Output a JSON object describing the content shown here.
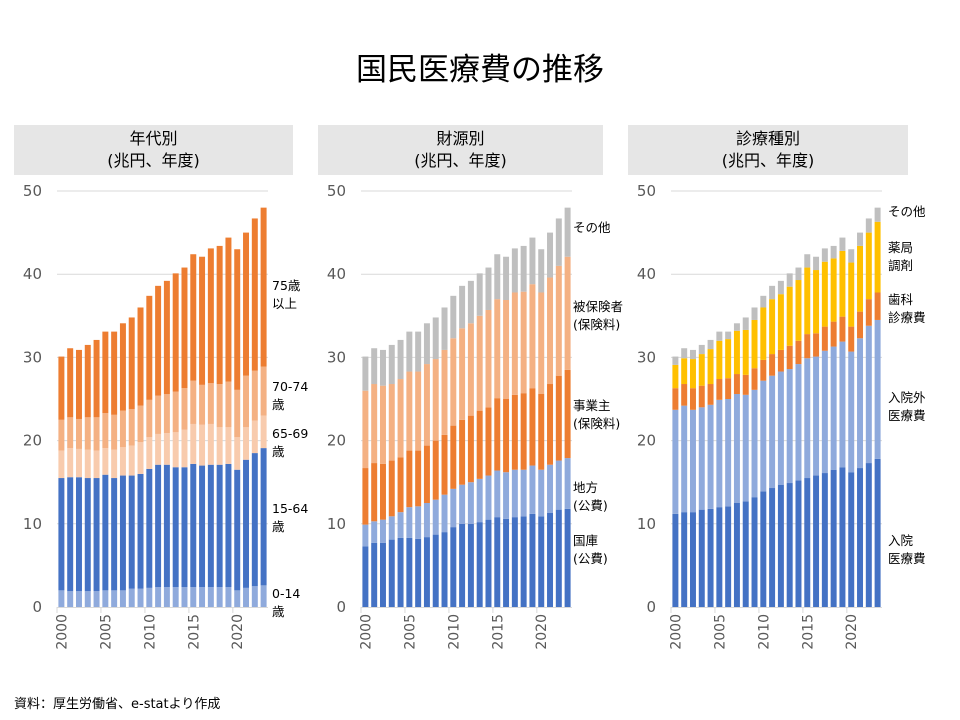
{
  "title": "国民医療費の推移",
  "footer": "資料：厚生労働省、e-statより作成",
  "colors": {
    "dark_blue": "#4472C4",
    "light_blue": "#8FAADC",
    "orange": "#ED7D31",
    "light_orange": "#F4B183",
    "pale_orange": "#F8CBAD",
    "gray": "#BFBFBF",
    "yellow": "#FFC000"
  },
  "chart_data": [
    {
      "type": "bar",
      "stacked": true,
      "title": "年代別\n(兆円、年度)",
      "x": [
        2000,
        2001,
        2002,
        2003,
        2004,
        2005,
        2006,
        2007,
        2008,
        2009,
        2010,
        2011,
        2012,
        2013,
        2014,
        2015,
        2016,
        2017,
        2018,
        2019,
        2020,
        2021,
        2022,
        2023
      ],
      "x_tick_labels": [
        "2000",
        "2005",
        "2010",
        "2015",
        "2020"
      ],
      "y_tick_labels": [
        "0",
        "10",
        "20",
        "30",
        "40",
        "50"
      ],
      "ylim": [
        0,
        50
      ],
      "grid": true,
      "series": [
        {
          "name": "0-14\n歳",
          "color": "#8FAADC",
          "values": [
            2.0,
            1.9,
            1.9,
            1.9,
            1.9,
            2.0,
            2.0,
            2.0,
            2.2,
            2.2,
            2.3,
            2.4,
            2.4,
            2.4,
            2.4,
            2.4,
            2.4,
            2.4,
            2.4,
            2.4,
            2.0,
            2.3,
            2.5,
            2.6
          ]
        },
        {
          "name": "15-64\n歳",
          "color": "#4472C4",
          "values": [
            13.5,
            13.7,
            13.7,
            13.6,
            13.6,
            13.9,
            13.5,
            13.8,
            13.6,
            13.8,
            14.3,
            14.7,
            14.7,
            14.4,
            14.4,
            14.8,
            14.6,
            14.7,
            14.7,
            14.8,
            14.5,
            15.4,
            16.0,
            16.5
          ]
        },
        {
          "name": "65-69\n歳",
          "color": "#F8CBAD",
          "values": [
            3.3,
            3.5,
            3.4,
            3.4,
            3.3,
            3.2,
            3.4,
            3.4,
            3.6,
            3.8,
            3.8,
            3.7,
            3.8,
            4.2,
            4.5,
            4.8,
            4.9,
            4.9,
            4.5,
            4.4,
            3.9,
            3.9,
            3.9,
            3.9
          ]
        },
        {
          "name": "70-74\n歳",
          "color": "#F4B183",
          "values": [
            3.7,
            3.7,
            3.6,
            3.9,
            4.0,
            4.2,
            4.2,
            4.4,
            4.4,
            4.4,
            4.5,
            4.6,
            4.7,
            4.9,
            5.0,
            5.2,
            4.8,
            4.9,
            5.2,
            5.5,
            5.7,
            6.2,
            6.0,
            5.9
          ]
        },
        {
          "name": "75歳\n以上",
          "color": "#ED7D31",
          "values": [
            7.6,
            8.3,
            8.3,
            8.7,
            9.3,
            9.8,
            10.0,
            10.5,
            11.0,
            11.8,
            12.5,
            13.2,
            13.6,
            14.2,
            14.5,
            15.2,
            15.4,
            16.2,
            16.6,
            17.3,
            16.9,
            17.2,
            18.3,
            19.1
          ]
        }
      ]
    },
    {
      "type": "bar",
      "stacked": true,
      "title": "財源別\n(兆円、年度)",
      "x": [
        2000,
        2001,
        2002,
        2003,
        2004,
        2005,
        2006,
        2007,
        2008,
        2009,
        2010,
        2011,
        2012,
        2013,
        2014,
        2015,
        2016,
        2017,
        2018,
        2019,
        2020,
        2021,
        2022,
        2023
      ],
      "x_tick_labels": [
        "2000",
        "2005",
        "2010",
        "2015",
        "2020"
      ],
      "y_tick_labels": [
        "0",
        "10",
        "20",
        "30",
        "40",
        "50"
      ],
      "ylim": [
        0,
        50
      ],
      "grid": true,
      "series": [
        {
          "name": "国庫\n(公費)",
          "color": "#4472C4",
          "values": [
            7.3,
            7.7,
            7.7,
            8.1,
            8.3,
            8.3,
            8.2,
            8.4,
            8.7,
            9.0,
            9.6,
            10.0,
            10.0,
            10.2,
            10.5,
            10.8,
            10.6,
            10.8,
            10.9,
            11.2,
            10.9,
            11.3,
            11.7,
            11.8
          ]
        },
        {
          "name": "地方\n(公費)",
          "color": "#8FAADC",
          "values": [
            2.6,
            2.6,
            2.8,
            2.8,
            3.1,
            3.7,
            3.9,
            4.1,
            4.2,
            4.5,
            4.6,
            4.7,
            5.0,
            5.2,
            5.3,
            5.6,
            5.6,
            5.7,
            5.6,
            5.8,
            5.6,
            5.8,
            5.9,
            6.1
          ]
        },
        {
          "name": "事業主\n(保険料)",
          "color": "#ED7D31",
          "values": [
            6.8,
            7.0,
            6.7,
            6.7,
            6.6,
            6.8,
            6.7,
            6.9,
            7.1,
            7.2,
            7.6,
            7.8,
            8.0,
            8.2,
            8.2,
            8.7,
            8.8,
            9.0,
            9.2,
            9.3,
            9.1,
            9.7,
            10.2,
            10.6
          ]
        },
        {
          "name": "被保険者\n(保険料)",
          "color": "#F4B183",
          "values": [
            9.3,
            9.5,
            9.4,
            9.2,
            9.4,
            9.5,
            9.5,
            9.8,
            9.8,
            10.2,
            10.5,
            11.0,
            11.1,
            11.4,
            11.7,
            11.9,
            11.9,
            12.3,
            12.2,
            12.5,
            12.2,
            12.8,
            13.2,
            13.6
          ]
        },
        {
          "name": "その他",
          "color": "#BFBFBF",
          "values": [
            4.1,
            4.3,
            4.3,
            4.7,
            4.7,
            4.8,
            4.8,
            4.9,
            5.0,
            5.1,
            5.1,
            5.1,
            5.1,
            5.1,
            5.1,
            5.4,
            5.2,
            5.3,
            5.5,
            5.6,
            5.2,
            5.4,
            5.7,
            5.9
          ]
        }
      ]
    },
    {
      "type": "bar",
      "stacked": true,
      "title": "診療種別\n(兆円、年度)",
      "x": [
        2000,
        2001,
        2002,
        2003,
        2004,
        2005,
        2006,
        2007,
        2008,
        2009,
        2010,
        2011,
        2012,
        2013,
        2014,
        2015,
        2016,
        2017,
        2018,
        2019,
        2020,
        2021,
        2022,
        2023
      ],
      "x_tick_labels": [
        "2000",
        "2005",
        "2010",
        "2015",
        "2020"
      ],
      "y_tick_labels": [
        "0",
        "10",
        "20",
        "30",
        "40",
        "50"
      ],
      "ylim": [
        0,
        50
      ],
      "grid": true,
      "series": [
        {
          "name": "入院\n医療費",
          "color": "#4472C4",
          "values": [
            11.2,
            11.4,
            11.4,
            11.7,
            11.8,
            12.0,
            12.1,
            12.5,
            12.7,
            13.2,
            13.9,
            14.3,
            14.7,
            14.9,
            15.2,
            15.5,
            15.8,
            16.1,
            16.5,
            16.8,
            16.2,
            16.7,
            17.3,
            17.8
          ]
        },
        {
          "name": "入院外\n医療費",
          "color": "#8FAADC",
          "values": [
            12.5,
            12.8,
            12.3,
            12.3,
            12.5,
            12.9,
            12.9,
            13.1,
            12.8,
            12.9,
            13.3,
            13.5,
            13.6,
            13.7,
            14.0,
            14.4,
            14.3,
            14.7,
            14.8,
            15.1,
            14.5,
            15.6,
            16.5,
            16.7
          ]
        },
        {
          "name": "歯科\n診療費",
          "color": "#ED7D31",
          "values": [
            2.6,
            2.6,
            2.6,
            2.6,
            2.5,
            2.5,
            2.5,
            2.4,
            2.4,
            2.6,
            2.5,
            2.6,
            2.6,
            2.8,
            2.8,
            2.9,
            2.8,
            2.9,
            3.0,
            3.0,
            3.0,
            3.2,
            3.2,
            3.3
          ]
        },
        {
          "name": "薬局\n調剤",
          "color": "#FFC000",
          "values": [
            2.8,
            3.1,
            3.5,
            3.8,
            4.2,
            4.6,
            4.7,
            5.2,
            5.4,
            5.8,
            6.3,
            6.6,
            6.7,
            7.1,
            7.3,
            8.0,
            7.6,
            7.8,
            7.6,
            7.9,
            7.7,
            7.9,
            8.0,
            8.5
          ]
        },
        {
          "name": "その他",
          "color": "#BFBFBF",
          "values": [
            1.0,
            1.2,
            1.1,
            1.1,
            1.1,
            1.1,
            0.9,
            0.9,
            1.5,
            1.5,
            1.4,
            1.6,
            1.6,
            1.6,
            1.5,
            1.6,
            1.6,
            1.6,
            1.5,
            1.6,
            1.6,
            1.6,
            1.7,
            1.7
          ]
        }
      ]
    }
  ]
}
